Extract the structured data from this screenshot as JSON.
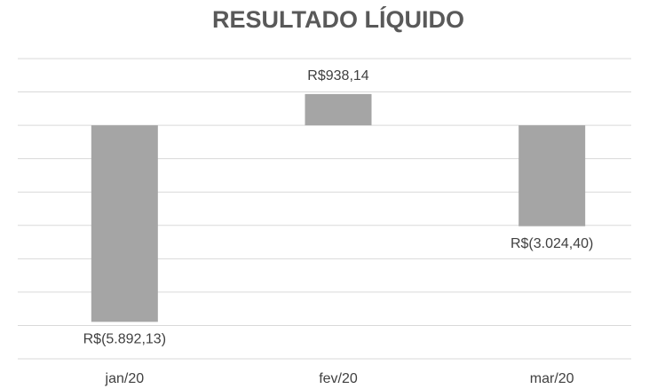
{
  "chart_data": {
    "type": "bar",
    "title": "RESULTADO LÍQUIDO",
    "categories": [
      "jan/20",
      "fev/20",
      "mar/20"
    ],
    "values": [
      -5892.13,
      938.14,
      -3024.4
    ],
    "value_labels": [
      "R$(5.892,13)",
      "R$938,14",
      "R$(3.024,40)"
    ],
    "color": "#a5a5a5",
    "ylim": [
      -7000,
      2000
    ],
    "yticks": [
      -7000,
      -6000,
      -5000,
      -4000,
      -3000,
      -2000,
      -1000,
      0,
      1000,
      2000
    ],
    "grid": true
  }
}
